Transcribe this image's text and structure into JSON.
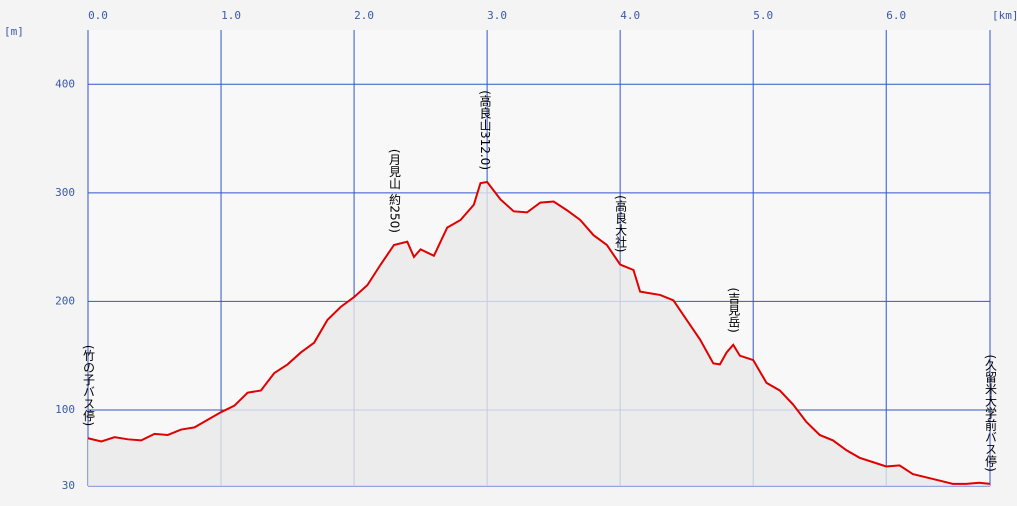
{
  "chart_data": {
    "type": "line",
    "x_unit": "[km]",
    "y_unit": "[m]",
    "x": [
      0,
      0.1,
      0.2,
      0.3,
      0.4,
      0.5,
      0.6,
      0.7,
      0.8,
      0.9,
      1.0,
      1.1,
      1.2,
      1.3,
      1.4,
      1.5,
      1.6,
      1.7,
      1.8,
      1.9,
      2.0,
      2.1,
      2.2,
      2.3,
      2.4,
      2.45,
      2.5,
      2.6,
      2.7,
      2.8,
      2.9,
      2.95,
      3.0,
      3.1,
      3.2,
      3.3,
      3.4,
      3.5,
      3.6,
      3.7,
      3.8,
      3.9,
      4.0,
      4.1,
      4.15,
      4.2,
      4.3,
      4.4,
      4.5,
      4.6,
      4.7,
      4.75,
      4.8,
      4.85,
      4.9,
      5.0,
      5.1,
      5.2,
      5.3,
      5.4,
      5.5,
      5.6,
      5.7,
      5.8,
      5.9,
      6.0,
      6.1,
      6.2,
      6.3,
      6.4,
      6.5,
      6.6,
      6.7,
      6.78
    ],
    "series": [
      {
        "color": "#e00000",
        "values": [
          74,
          71,
          75,
          73,
          72,
          78,
          77,
          82,
          84,
          91,
          98,
          104,
          116,
          118,
          134,
          142,
          153,
          162,
          183,
          195,
          204,
          215,
          234,
          252,
          255,
          241,
          248,
          242,
          268,
          275,
          289,
          309,
          310,
          294,
          283,
          282,
          291,
          292,
          284,
          275,
          261,
          252,
          234,
          229,
          209,
          208,
          206,
          201,
          183,
          165,
          143,
          142,
          153,
          160,
          150,
          146,
          125,
          118,
          105,
          89,
          77,
          72,
          63,
          56,
          52,
          48,
          49,
          41,
          38,
          35,
          32,
          32,
          33,
          32
        ]
      }
    ],
    "xlim": [
      0,
      6.78
    ],
    "ylim": [
      30,
      450
    ],
    "xticks": [
      {
        "value": 0,
        "label": "0.0"
      },
      {
        "value": 1,
        "label": "1.0"
      },
      {
        "value": 2,
        "label": "2.0"
      },
      {
        "value": 3,
        "label": "3.0"
      },
      {
        "value": 4,
        "label": "4.0"
      },
      {
        "value": 5,
        "label": "5.0"
      },
      {
        "value": 6,
        "label": "6.0"
      }
    ],
    "yticks": [
      30,
      100,
      200,
      300,
      400
    ],
    "grid": true,
    "annotations": [
      {
        "x": 0,
        "text": "(竹の子バス停)"
      },
      {
        "x": 2.3,
        "text": "(月見山 約250)"
      },
      {
        "x": 2.98,
        "text": "(高良山312.0)"
      },
      {
        "x": 4.0,
        "text": "(高良大社)"
      },
      {
        "x": 4.85,
        "text": "(吉見岳)"
      },
      {
        "x": 6.78,
        "text": "(久留米大学前バス停)"
      }
    ]
  }
}
